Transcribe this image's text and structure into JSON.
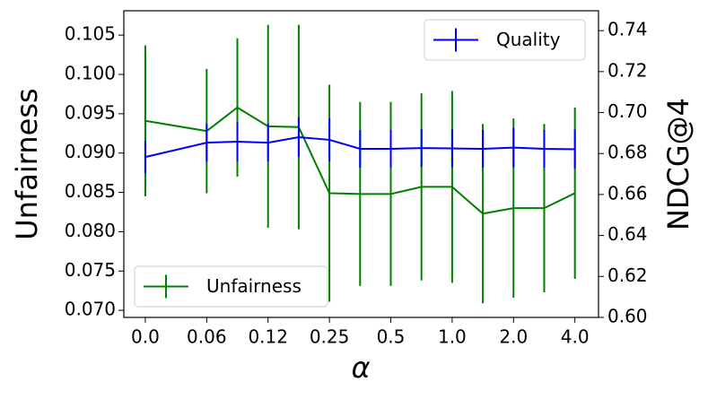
{
  "chart_data": {
    "type": "line",
    "xlabel": "α",
    "ylabel": "Unfairness",
    "y2label": "NDCG@4",
    "x": [
      0,
      2,
      3,
      4,
      5,
      6,
      7,
      8,
      9,
      10,
      11,
      12,
      13,
      14
    ],
    "xlim": [
      -0.7,
      14.77
    ],
    "xticks": [
      {
        "value": 0,
        "label": "0.0"
      },
      {
        "value": 2,
        "label": "0.06"
      },
      {
        "value": 4,
        "label": "0.12"
      },
      {
        "value": 6,
        "label": "0.25"
      },
      {
        "value": 8,
        "label": "0.5"
      },
      {
        "value": 10,
        "label": "1.0"
      },
      {
        "value": 12,
        "label": "2.0"
      },
      {
        "value": 14,
        "label": "4.0"
      }
    ],
    "ylim": [
      0.0691,
      0.1081
    ],
    "yticks": [
      {
        "value": 0.07,
        "label": "0.070"
      },
      0.075,
      {
        "value": 0.08,
        "label": "0.080"
      },
      0.085,
      {
        "value": 0.09,
        "label": "0.090"
      },
      0.095,
      {
        "value": 0.1,
        "label": "0.100"
      },
      0.105
    ],
    "y2lim": [
      0.6,
      0.7497
    ],
    "y2ticks": [
      {
        "value": 0.6,
        "label": "0.60"
      },
      0.62,
      0.64,
      0.66,
      0.68,
      {
        "value": 0.7,
        "label": "0.70"
      },
      0.72,
      0.74
    ],
    "series": [
      {
        "name": "Unfairness",
        "color": "#008000",
        "legend_loc": "lower left",
        "values": [
          0.0941,
          0.0928,
          0.0958,
          0.0934,
          0.0933,
          0.0849,
          0.0848,
          0.0848,
          0.0857,
          0.0857,
          0.0823,
          0.083,
          0.083,
          0.0849
        ],
        "errors": [
          0.0096,
          0.0079,
          0.0088,
          0.0129,
          0.013,
          0.0138,
          0.0117,
          0.0117,
          0.0119,
          0.0122,
          0.0114,
          0.0114,
          0.0107,
          0.0109
        ]
      },
      {
        "name": "Quality",
        "color": "#0000ff",
        "axis": "y2",
        "legend_loc": "upper right",
        "values": [
          0.6783,
          0.6853,
          0.6858,
          0.6853,
          0.688,
          0.6867,
          0.6823,
          0.6823,
          0.6827,
          0.6825,
          0.6823,
          0.6829,
          0.6823,
          0.6821
        ],
        "errors": [
          0.0079,
          0.0092,
          0.0096,
          0.0092,
          0.0096,
          0.0105,
          0.0092,
          0.0092,
          0.0092,
          0.0092,
          0.0092,
          0.0096,
          0.0092,
          0.0096
        ]
      }
    ]
  }
}
